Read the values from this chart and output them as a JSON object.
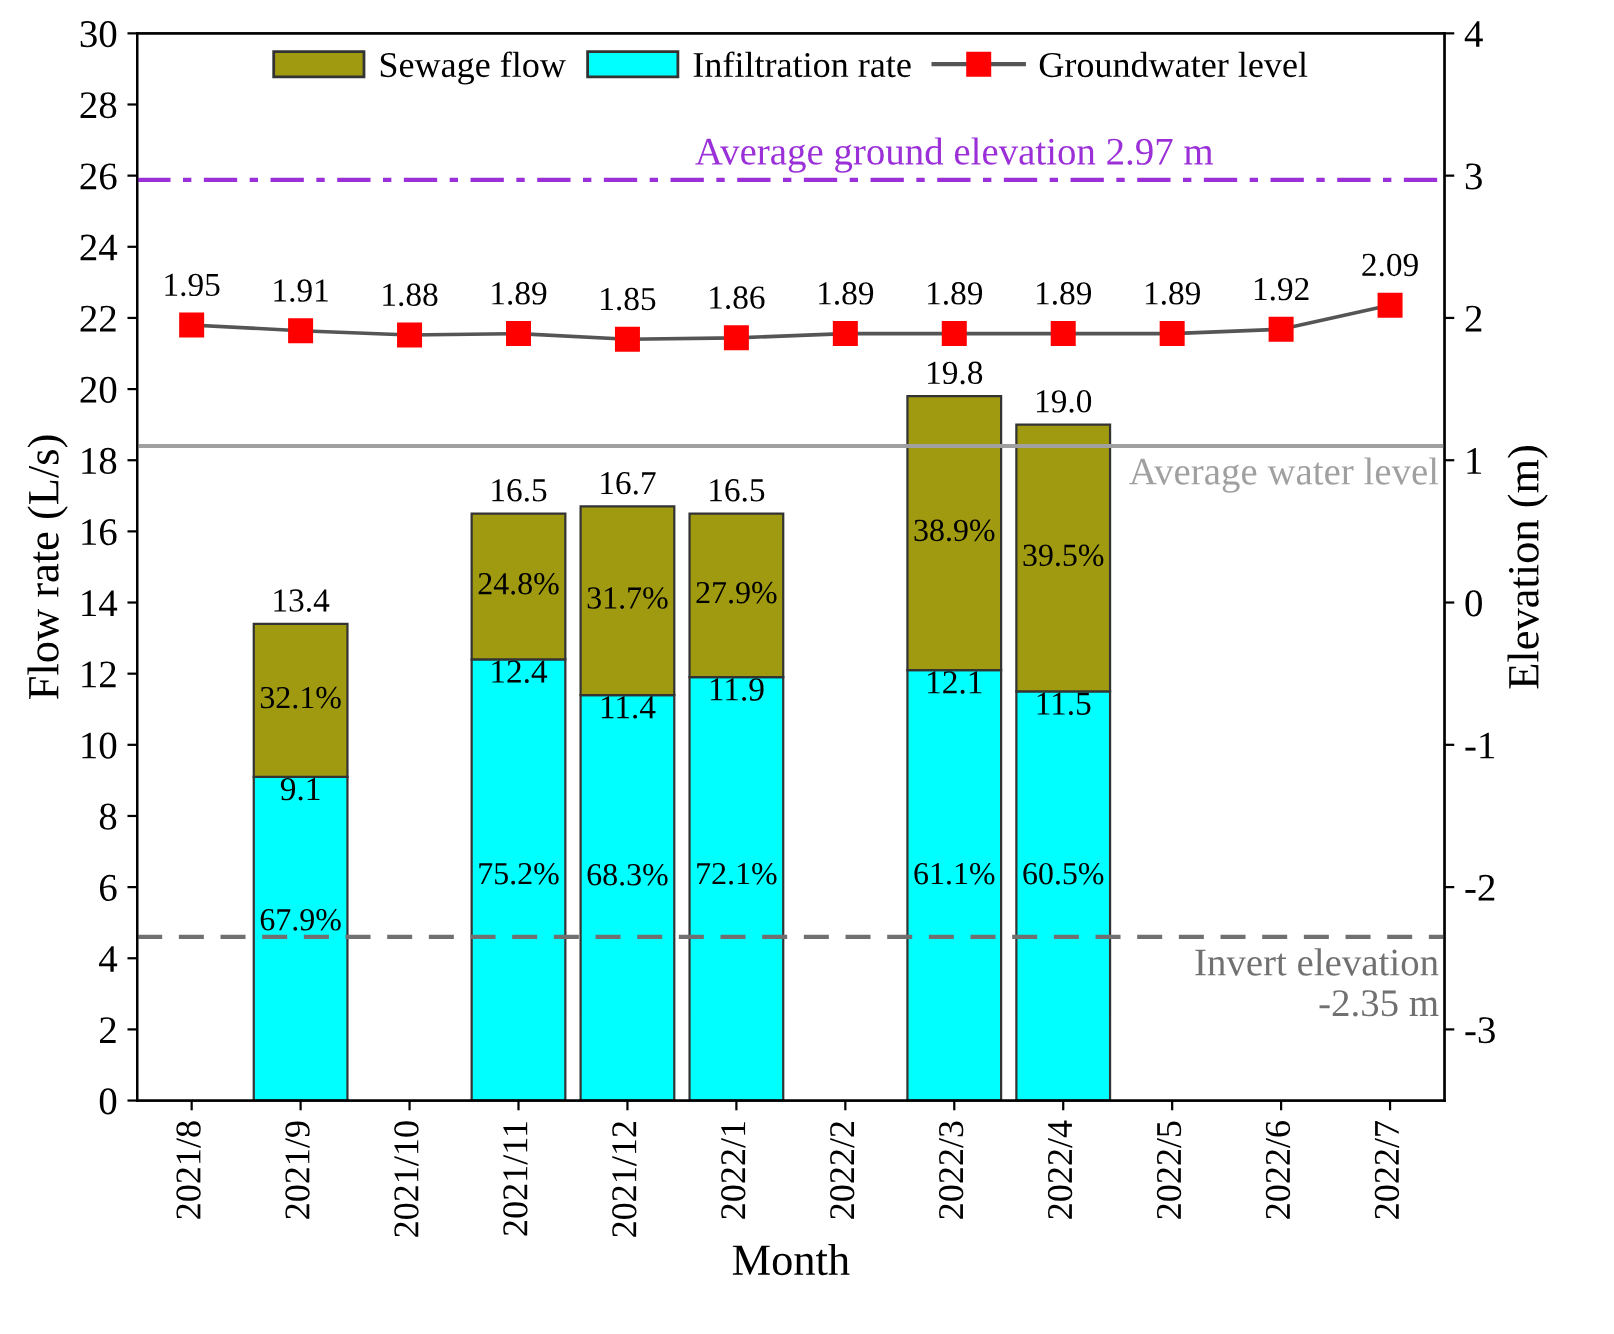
{
  "chart_data": {
    "type": "bar",
    "stacked": true,
    "xlabel": "Month",
    "ylabel": "Flow rate (L/s)",
    "y2label": "Elevation (m)",
    "categories": [
      "2021/8",
      "2021/9",
      "2021/10",
      "2021/11",
      "2021/12",
      "2022/1",
      "2022/2",
      "2022/3",
      "2022/4",
      "2022/5",
      "2022/6",
      "2022/7"
    ],
    "series": [
      {
        "name": "Infiltration rate",
        "color": "#00ffff",
        "values": [
          null,
          9.1,
          null,
          12.4,
          11.4,
          11.9,
          null,
          12.1,
          11.5,
          null,
          null,
          null
        ],
        "data_labels": true
      },
      {
        "name": "Sewage flow",
        "color": "#a09a10",
        "values": [
          null,
          4.3,
          null,
          4.1,
          5.3,
          4.6,
          null,
          7.7,
          7.5,
          null,
          null,
          null
        ]
      },
      {
        "name": "Groundwater level",
        "type": "line",
        "axis": "y2",
        "color": "#ff0000",
        "marker": "square",
        "data_labels": true,
        "values": [
          1.95,
          1.91,
          1.88,
          1.89,
          1.85,
          1.86,
          1.89,
          1.89,
          1.89,
          1.89,
          1.92,
          2.09
        ]
      }
    ],
    "annotations": [
      "67.9%",
      "75.2%",
      "68.3%",
      "72.1%",
      "61.1%",
      "60.5%",
      "32.1%",
      "24.8%",
      "31.7%",
      "27.9%",
      "38.9%",
      "39.5%"
    ],
    "totals": [
      null,
      "13.4",
      null,
      "16.5",
      "16.7",
      "16.5",
      null,
      "19.8",
      "19.0",
      null,
      null,
      null
    ],
    "ref_lines": [
      {
        "axis": "y2",
        "value": 2.97,
        "label": "Average ground elevation 2.97 m",
        "color": "#9b30d9",
        "line_style": "dashdot"
      },
      {
        "axis": "y2",
        "value": 1.1,
        "label": "Average water level",
        "color": "#a0a0a0",
        "line_style": "solid"
      },
      {
        "axis": "y2",
        "value": -2.35,
        "label": "Invert elevation\n-2.35 m",
        "color": "#707070",
        "line_style": "dashed"
      }
    ],
    "ylim": [
      0,
      30
    ],
    "yticks": [
      0,
      2,
      4,
      6,
      8,
      10,
      12,
      14,
      16,
      18,
      20,
      22,
      24,
      26,
      28,
      30
    ],
    "y2lim": [
      -3.5,
      4
    ],
    "y2ticks": [
      -3,
      -2,
      -1,
      0,
      1,
      2,
      3,
      4
    ],
    "legend": "top",
    "grid": false
  }
}
